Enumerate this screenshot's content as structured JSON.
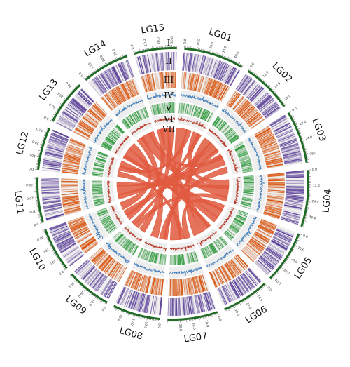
{
  "chromosomes": [
    {
      "name": "LG01",
      "length": 48,
      "ticks": [
        "0.0",
        "10.0",
        "20.0",
        "30.0",
        "40.0"
      ]
    },
    {
      "name": "LG02",
      "length": 40,
      "ticks": [
        "0.0",
        "12.0",
        "24.0",
        "36.0"
      ]
    },
    {
      "name": "LG03",
      "length": 42,
      "ticks": [
        "0.0",
        "12.0",
        "24.0",
        "36.0"
      ]
    },
    {
      "name": "LG04",
      "length": 45,
      "ticks": [
        "0.0",
        "12.0",
        "24.0",
        "36.0"
      ]
    },
    {
      "name": "LG05",
      "length": 42,
      "ticks": [
        "0.0",
        "10.0",
        "20.0",
        "30.0",
        "40.0"
      ]
    },
    {
      "name": "LG06",
      "length": 38,
      "ticks": [
        "0.0",
        "10.0",
        "20.0",
        "30.0"
      ]
    },
    {
      "name": "LG07",
      "length": 40,
      "ticks": [
        "0.0",
        "10.0",
        "20.0",
        "30.0"
      ]
    },
    {
      "name": "LG08",
      "length": 38,
      "ticks": [
        "0.0",
        "10.0",
        "20.0",
        "30.0"
      ]
    },
    {
      "name": "LG09",
      "length": 36,
      "ticks": [
        "0.0",
        "10.0",
        "20.0",
        "30.0"
      ]
    },
    {
      "name": "LG10",
      "length": 35,
      "ticks": [
        "0.0",
        "10.0",
        "20.0",
        "30.0"
      ]
    },
    {
      "name": "LG11",
      "length": 36,
      "ticks": [
        "0.0",
        "10.0",
        "20.0",
        "30.0"
      ]
    },
    {
      "name": "LG12",
      "length": 34,
      "ticks": [
        "0.0",
        "10.0",
        "20.0",
        "30.0"
      ]
    },
    {
      "name": "LG13",
      "length": 36,
      "ticks": [
        "0.0",
        "10.0",
        "20.0",
        "30.0"
      ]
    },
    {
      "name": "LG14",
      "length": 38,
      "ticks": [
        "0.0",
        "10.0",
        "20.0",
        "30.0"
      ]
    },
    {
      "name": "LG15",
      "length": 34,
      "ticks": [
        "0.0",
        "10.0",
        "20.0",
        "30.0"
      ]
    }
  ],
  "tracks": [
    {
      "label": "I",
      "type": "ideogram"
    },
    {
      "label": "II",
      "type": "heatmap",
      "color": "#5b3f99"
    },
    {
      "label": "III",
      "type": "heatmap",
      "color": "#d9540d"
    },
    {
      "label": "IV",
      "type": "line",
      "color": "#3a79b8"
    },
    {
      "label": "V",
      "type": "heatmap",
      "color": "#2f9a3d"
    },
    {
      "label": "VI",
      "type": "line",
      "color": "#b5311f"
    },
    {
      "label": "VII",
      "type": "links",
      "color": "#e05a3f"
    }
  ],
  "colors": {
    "ideogram": "#1f6b26",
    "track_background": "#eeeeee",
    "link": "#e05a3f"
  },
  "links": [
    {
      "from": [
        "LG01",
        8
      ],
      "to": [
        "LG07",
        30
      ],
      "weight": 9
    },
    {
      "from": [
        "LG01",
        38
      ],
      "to": [
        "LG04",
        10
      ],
      "weight": 6
    },
    {
      "from": [
        "LG01",
        22
      ],
      "to": [
        "LG12",
        20
      ],
      "weight": 4
    },
    {
      "from": [
        "LG02",
        10
      ],
      "to": [
        "LG06",
        30
      ],
      "weight": 7
    },
    {
      "from": [
        "LG02",
        30
      ],
      "to": [
        "LG10",
        12
      ],
      "weight": 5
    },
    {
      "from": [
        "LG03",
        12
      ],
      "to": [
        "LG11",
        18
      ],
      "weight": 8
    },
    {
      "from": [
        "LG03",
        32
      ],
      "to": [
        "LG08",
        10
      ],
      "weight": 5
    },
    {
      "from": [
        "LG04",
        28
      ],
      "to": [
        "LG14",
        20
      ],
      "weight": 9
    },
    {
      "from": [
        "LG04",
        40
      ],
      "to": [
        "LG09",
        22
      ],
      "weight": 4
    },
    {
      "from": [
        "LG05",
        20
      ],
      "to": [
        "LG13",
        12
      ],
      "weight": 8
    },
    {
      "from": [
        "LG05",
        8
      ],
      "to": [
        "LG07",
        8
      ],
      "weight": 5
    },
    {
      "from": [
        "LG06",
        12
      ],
      "to": [
        "LG15",
        14
      ],
      "weight": 7
    },
    {
      "from": [
        "LG07",
        18
      ],
      "to": [
        "LG12",
        8
      ],
      "weight": 4
    },
    {
      "from": [
        "LG08",
        26
      ],
      "to": [
        "LG14",
        8
      ],
      "weight": 6
    },
    {
      "from": [
        "LG09",
        8
      ],
      "to": [
        "LG15",
        26
      ],
      "weight": 5
    },
    {
      "from": [
        "LG10",
        28
      ],
      "to": [
        "LG13",
        28
      ],
      "weight": 6
    },
    {
      "from": [
        "LG11",
        6
      ],
      "to": [
        "LG02",
        20
      ],
      "weight": 4
    },
    {
      "from": [
        "LG12",
        28
      ],
      "to": [
        "LG05",
        34
      ],
      "weight": 5
    },
    {
      "from": [
        "LG13",
        4
      ],
      "to": [
        "LG06",
        4
      ],
      "weight": 3
    },
    {
      "from": [
        "LG14",
        32
      ],
      "to": [
        "LG03",
        4
      ],
      "weight": 4
    },
    {
      "from": [
        "LG15",
        6
      ],
      "to": [
        "LG10",
        4
      ],
      "weight": 5
    },
    {
      "from": [
        "LG01",
        44
      ],
      "to": [
        "LG09",
        30
      ],
      "weight": 3
    },
    {
      "from": [
        "LG04",
        18
      ],
      "to": [
        "LG11",
        30
      ],
      "weight": 3
    },
    {
      "from": [
        "LG08",
        4
      ],
      "to": [
        "LG02",
        36
      ],
      "weight": 3
    }
  ]
}
